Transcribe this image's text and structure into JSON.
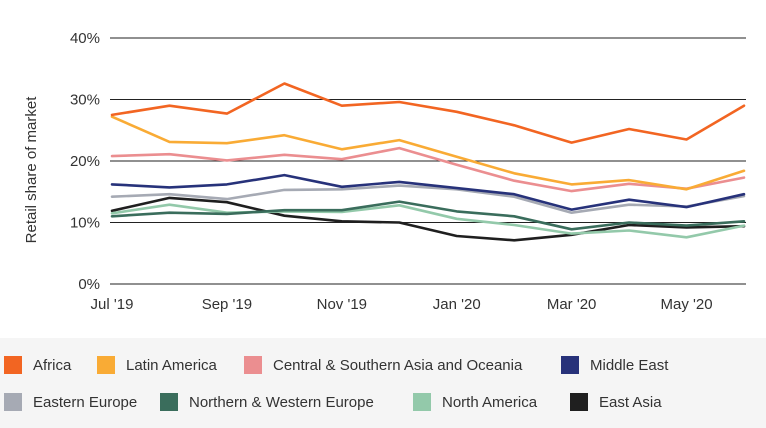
{
  "chart_data": {
    "type": "line",
    "title": "",
    "xlabel": "",
    "ylabel": "Retail share of market",
    "ylim": [
      0,
      40
    ],
    "yticks": [
      "0%",
      "10%",
      "20%",
      "30%",
      "40%"
    ],
    "x": [
      "Jul '19",
      "Aug '19",
      "Sep '19",
      "Oct '19",
      "Nov '19",
      "Dec '19",
      "Jan '20",
      "Feb '20",
      "Mar '20",
      "Apr '20",
      "May '20",
      "Jun '20"
    ],
    "xtick_labels": [
      "Jul '19",
      "Sep '19",
      "Nov '19",
      "Jan '20",
      "Mar '20",
      "May '20"
    ],
    "grid": true,
    "legend_position": "bottom",
    "series": [
      {
        "name": "Africa",
        "color": "#f26522",
        "values": [
          27.5,
          29,
          27.7,
          32.6,
          29,
          29.6,
          28,
          25.8,
          23,
          25.2,
          23.5,
          29
        ]
      },
      {
        "name": "Latin America",
        "color": "#f9ab35",
        "values": [
          27.2,
          23.1,
          22.9,
          24.2,
          21.9,
          23.4,
          20.7,
          18,
          16.2,
          16.9,
          15.4,
          18.4
        ]
      },
      {
        "name": "Central & Southern Asia and Oceania",
        "color": "#eb8e90",
        "values": [
          20.8,
          21.1,
          20.1,
          21,
          20.3,
          22.1,
          19.4,
          16.8,
          15.1,
          16.3,
          15.5,
          17.3
        ]
      },
      {
        "name": "Middle East",
        "color": "#27327a",
        "values": [
          16.2,
          15.7,
          16.2,
          17.7,
          15.8,
          16.6,
          15.6,
          14.6,
          12.1,
          13.7,
          12.5,
          14.6
        ]
      },
      {
        "name": "Eastern Europe",
        "color": "#a6aab4",
        "values": [
          14.2,
          14.6,
          13.8,
          15.3,
          15.4,
          16,
          15.4,
          14.2,
          11.6,
          12.9,
          12.6,
          14.3
        ]
      },
      {
        "name": "Northern & Western Europe",
        "color": "#3a6d5c",
        "values": [
          11,
          11.6,
          11.4,
          12,
          12,
          13.4,
          11.8,
          11,
          8.9,
          10,
          9.5,
          10.2
        ]
      },
      {
        "name": "North America",
        "color": "#93c9aa",
        "values": [
          11.5,
          12.9,
          11.6,
          11.8,
          11.7,
          12.8,
          10.6,
          9.6,
          8.2,
          8.7,
          7.6,
          9.5
        ]
      },
      {
        "name": "East Asia",
        "color": "#1f1f1f",
        "values": [
          11.9,
          14,
          13.3,
          11.1,
          10.2,
          10,
          7.8,
          7.1,
          8,
          9.6,
          9.2,
          9.4
        ]
      }
    ]
  }
}
